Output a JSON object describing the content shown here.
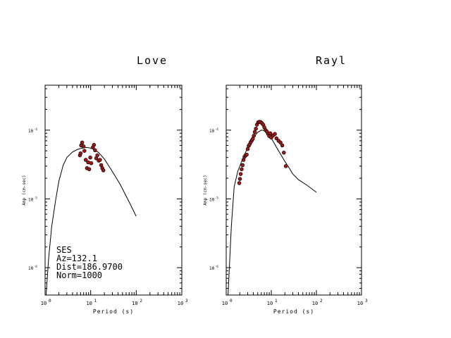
{
  "chart_data": [
    {
      "type": "scatter",
      "title": "Love",
      "xlabel": "Period (s)",
      "ylabel": "Amp (cm-sec)",
      "x_scale": "log",
      "y_scale": "log",
      "xlim": [
        1,
        1000
      ],
      "ylim": [
        4e-07,
        0.00045
      ],
      "xticks": [
        {
          "value": 1,
          "label": "10",
          "exp": "0"
        },
        {
          "value": 10,
          "label": "10",
          "exp": "1"
        },
        {
          "value": 100,
          "label": "10",
          "exp": "2"
        },
        {
          "value": 1000,
          "label": "10",
          "exp": "3"
        }
      ],
      "yticks": [
        {
          "value": 1e-06,
          "label": "10",
          "exp": "-6"
        },
        {
          "value": 1e-05,
          "label": "10",
          "exp": "-5"
        },
        {
          "value": 0.0001,
          "label": "10",
          "exp": "-4"
        }
      ],
      "info": [
        "SES",
        "Az=132.1",
        "Dist=186.9700",
        "Norm=1000"
      ],
      "series": [
        {
          "kind": "line",
          "x": [
            1.05,
            1.2,
            1.4,
            1.7,
            2.0,
            2.5,
            3.0,
            4.0,
            5.0,
            6.0,
            8.0,
            10.0,
            12.0,
            15.0,
            20.0,
            30.0,
            45.0,
            70.0,
            100.0
          ],
          "y": [
            4e-07,
            1.4e-06,
            4e-06,
            9.5e-06,
            1.8e-05,
            3.1e-05,
            4e-05,
            4.8e-05,
            5.2e-05,
            5.4e-05,
            5.6e-05,
            5.5e-05,
            5.2e-05,
            4.7e-05,
            3.8e-05,
            2.5e-05,
            1.6e-05,
            9e-06,
            5.6e-06
          ]
        },
        {
          "kind": "points",
          "x": [
            5.8,
            6.2,
            6.5,
            7.0,
            7.3,
            6.0,
            7.8,
            8.3,
            8.8,
            9.3,
            9.8,
            10.3,
            11.2,
            11.8,
            12.5,
            13.2,
            14.0,
            15.0,
            16.0,
            17.0,
            18.0,
            19.0
          ],
          "y": [
            4.3e-05,
            6e-05,
            6.6e-05,
            5.8e-05,
            5e-05,
            4.6e-05,
            3.7e-05,
            2.8e-05,
            3.4e-05,
            2.7e-05,
            4e-05,
            3.3e-05,
            5.6e-05,
            6.1e-05,
            5.1e-05,
            3.9e-05,
            4.3e-05,
            3.6e-05,
            3.7e-05,
            3.1e-05,
            2.8e-05,
            2.6e-05
          ]
        }
      ]
    },
    {
      "type": "scatter",
      "title": "Rayl",
      "xlabel": "Period (s)",
      "ylabel": "Amp (cm-sec)",
      "x_scale": "log",
      "y_scale": "log",
      "xlim": [
        1,
        1000
      ],
      "ylim": [
        4e-07,
        0.00045
      ],
      "xticks": [
        {
          "value": 1,
          "label": "10",
          "exp": "0"
        },
        {
          "value": 10,
          "label": "10",
          "exp": "1"
        },
        {
          "value": 100,
          "label": "10",
          "exp": "2"
        },
        {
          "value": 1000,
          "label": "10",
          "exp": "3"
        }
      ],
      "yticks": [
        {
          "value": 1e-06,
          "label": "10",
          "exp": "-6"
        },
        {
          "value": 1e-05,
          "label": "10",
          "exp": "-5"
        },
        {
          "value": 0.0001,
          "label": "10",
          "exp": "-4"
        }
      ],
      "info": [],
      "series": [
        {
          "kind": "line",
          "x": [
            1.0,
            1.1,
            1.3,
            1.5,
            1.8,
            2.2,
            2.7,
            3.3,
            4.0,
            5.0,
            6.0,
            7.0,
            8.0,
            9.0,
            10.0,
            12.0,
            15.0,
            20.0,
            25.0,
            30.0,
            40.0,
            60.0,
            100.0
          ],
          "y": [
            4e-07,
            4e-07,
            4e-06,
            1.5e-05,
            2.5e-05,
            3.5e-05,
            4.8e-05,
            6.3e-05,
            7.8e-05,
            9.3e-05,
            0.0001,
            9.9e-05,
            9.4e-05,
            8.6e-05,
            7.6e-05,
            6.2e-05,
            4.8e-05,
            3.5e-05,
            2.8e-05,
            2.3e-05,
            1.9e-05,
            1.6e-05,
            1.25e-05
          ]
        },
        {
          "kind": "points",
          "x": [
            1.95,
            2.02,
            2.1,
            2.2,
            2.3,
            2.42,
            2.55,
            2.7,
            2.85,
            3.0,
            3.15,
            3.3,
            3.5,
            3.7,
            3.9,
            4.1,
            4.3,
            4.55,
            4.8,
            5.1,
            5.4,
            5.8,
            6.2,
            6.6,
            7.0,
            7.5,
            8.0,
            8.5,
            9.0,
            9.5,
            10.0,
            11.0,
            12.0,
            13.0,
            14.5,
            16.0,
            17.5,
            19.0,
            21.0
          ],
          "y": [
            1.7e-05,
            1.95e-05,
            2.3e-05,
            2.7e-05,
            3.1e-05,
            3.7e-05,
            4.1e-05,
            4.3e-05,
            4.4e-05,
            5.3e-05,
            5.9e-05,
            6.2e-05,
            6.7e-05,
            7.1e-05,
            7.5e-05,
            8.3e-05,
            9.4e-05,
            0.000105,
            0.00012,
            0.00013,
            0.000132,
            0.000131,
            0.000126,
            0.00012,
            0.00011,
            0.0001,
            9.5e-05,
            8.8e-05,
            8.2e-05,
            9e-05,
            7.8e-05,
            8.4e-05,
            8.8e-05,
            7.6e-05,
            7e-05,
            6.6e-05,
            6e-05,
            4.7e-05,
            3e-05
          ]
        }
      ]
    }
  ]
}
